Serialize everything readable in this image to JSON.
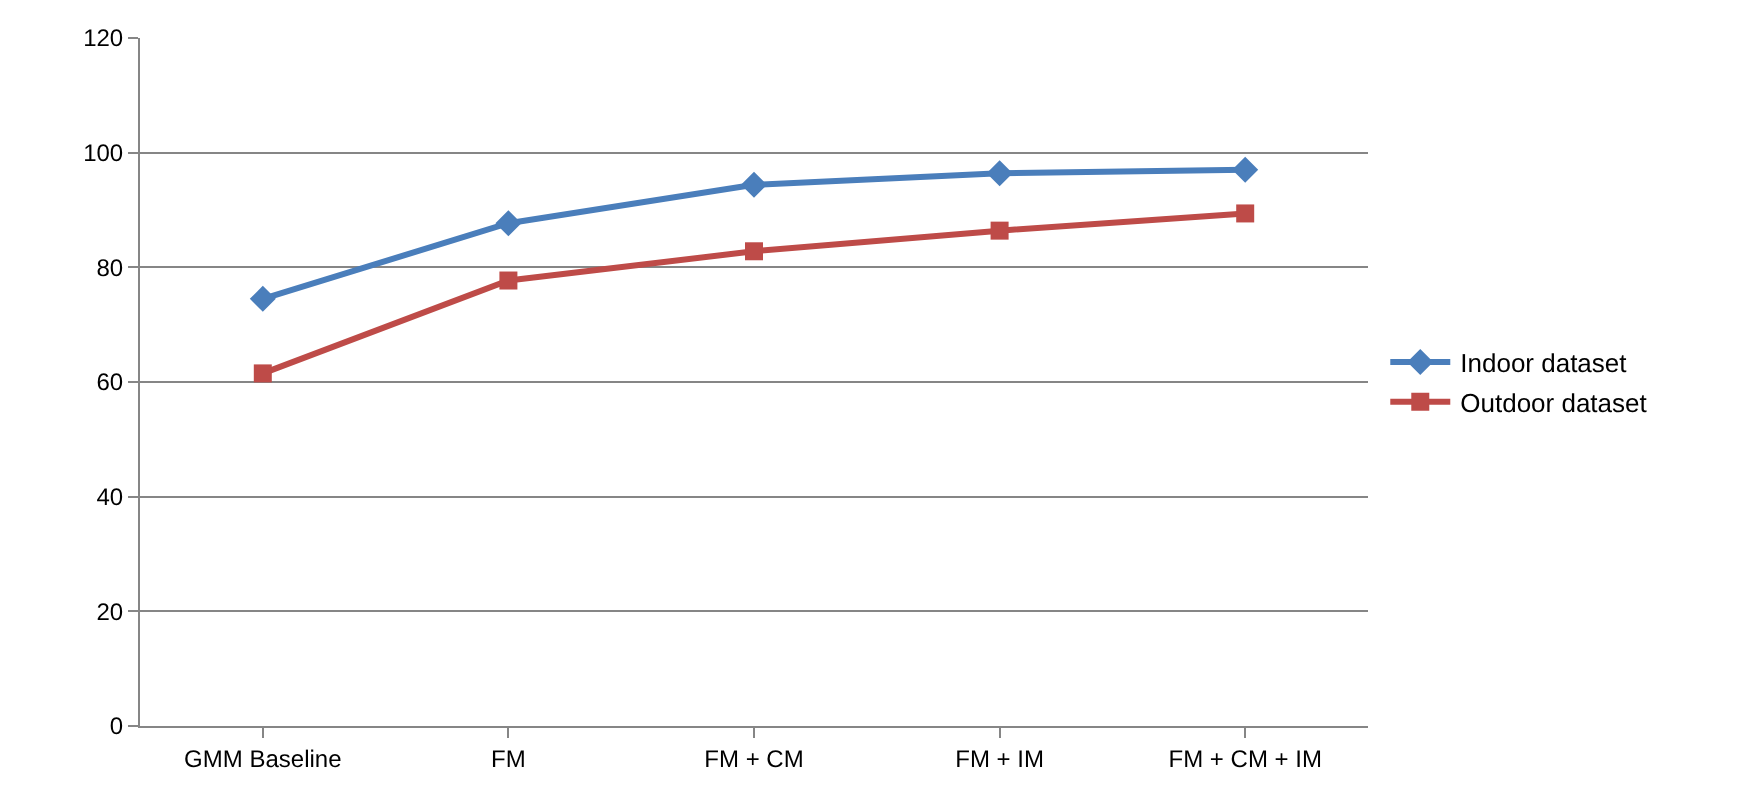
{
  "chart_data": {
    "type": "line",
    "categories": [
      "GMM Baseline",
      "FM",
      "FM + CM",
      "FM + IM",
      "FM + CM + IM"
    ],
    "series": [
      {
        "name": "Indoor dataset",
        "color": "#4a7ebb",
        "marker": "diamond",
        "values": [
          74.5,
          87.7,
          94.4,
          96.4,
          97.0
        ]
      },
      {
        "name": "Outdoor dataset",
        "color": "#be4b48",
        "marker": "square",
        "values": [
          61.5,
          77.7,
          82.8,
          86.4,
          89.4
        ]
      }
    ],
    "ylim": [
      0,
      120
    ],
    "yticks": [
      0,
      20,
      40,
      60,
      80,
      100,
      120
    ],
    "grid": "y",
    "legend": "right",
    "line_style": "solid"
  }
}
